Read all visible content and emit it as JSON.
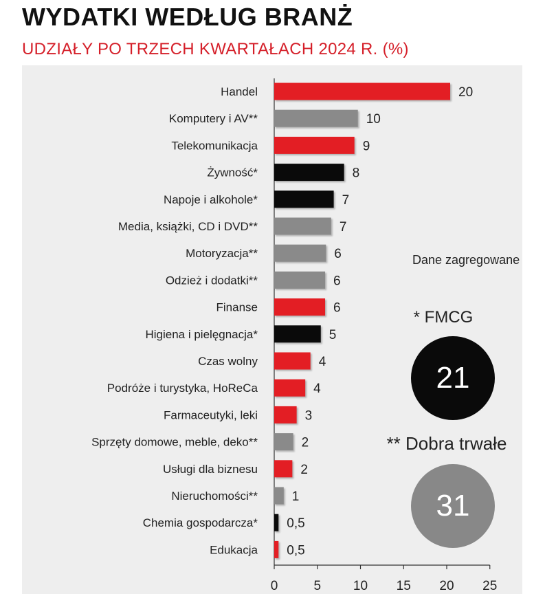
{
  "header": {
    "title": "WYDATKI WEDŁUG BRANŻ",
    "subtitle": "UDZIAŁY PO TRZECH KWARTAŁACH 2024 R. (%)"
  },
  "legend": {
    "note": "Dane zagregowane",
    "fmcg_label": "* FMCG",
    "fmcg_value": "21",
    "durable_label": "** Dobra trwałe",
    "durable_value": "31"
  },
  "colors": {
    "red": "#e31e24",
    "gray": "#8a8a8a",
    "black": "#0a0a0a",
    "panel": "#eeeeee"
  },
  "chart_data": {
    "type": "bar",
    "orientation": "horizontal",
    "title": "WYDATKI WEDŁUG BRANŻ",
    "subtitle": "UDZIAŁY PO TRZECH KWARTAŁACH 2024 R. (%)",
    "xlim": [
      0,
      25
    ],
    "ticks": [
      0,
      5,
      10,
      15,
      20,
      25
    ],
    "tick_labels": [
      "0",
      "5",
      "10",
      "15",
      "20",
      "25"
    ],
    "grid": false,
    "categories": [
      "Handel",
      "Komputery i AV**",
      "Telekomunikacja",
      "Żywność*",
      "Napoje i alkohole*",
      "Media, książki, CD i DVD**",
      "Motoryzacja**",
      "Odzież i dodatki**",
      "Finanse",
      "Higiena i pielęgnacja*",
      "Czas wolny",
      "Podróże i turystyka, HoReCa",
      "Farmaceutyki, leki",
      "Sprzęty domowe, meble, deko**",
      "Usługi dla biznesu",
      "Nieruchomości**",
      "Chemia gospodarcza*",
      "Edukacja"
    ],
    "values": [
      20.4,
      9.7,
      9.3,
      8.1,
      6.9,
      6.6,
      6.0,
      5.9,
      5.9,
      5.4,
      4.2,
      3.6,
      2.6,
      2.2,
      2.1,
      1.1,
      0.5,
      0.5
    ],
    "value_labels": [
      "20",
      "10",
      "9",
      "8",
      "7",
      "7",
      "6",
      "6",
      "6",
      "5",
      "4",
      "4",
      "3",
      "2",
      "2",
      "1",
      "0,5",
      "0,5"
    ],
    "groups": [
      "other",
      "durable",
      "other",
      "fmcg",
      "fmcg",
      "durable",
      "durable",
      "durable",
      "other",
      "fmcg",
      "other",
      "other",
      "other",
      "durable",
      "other",
      "durable",
      "fmcg",
      "other"
    ]
  }
}
